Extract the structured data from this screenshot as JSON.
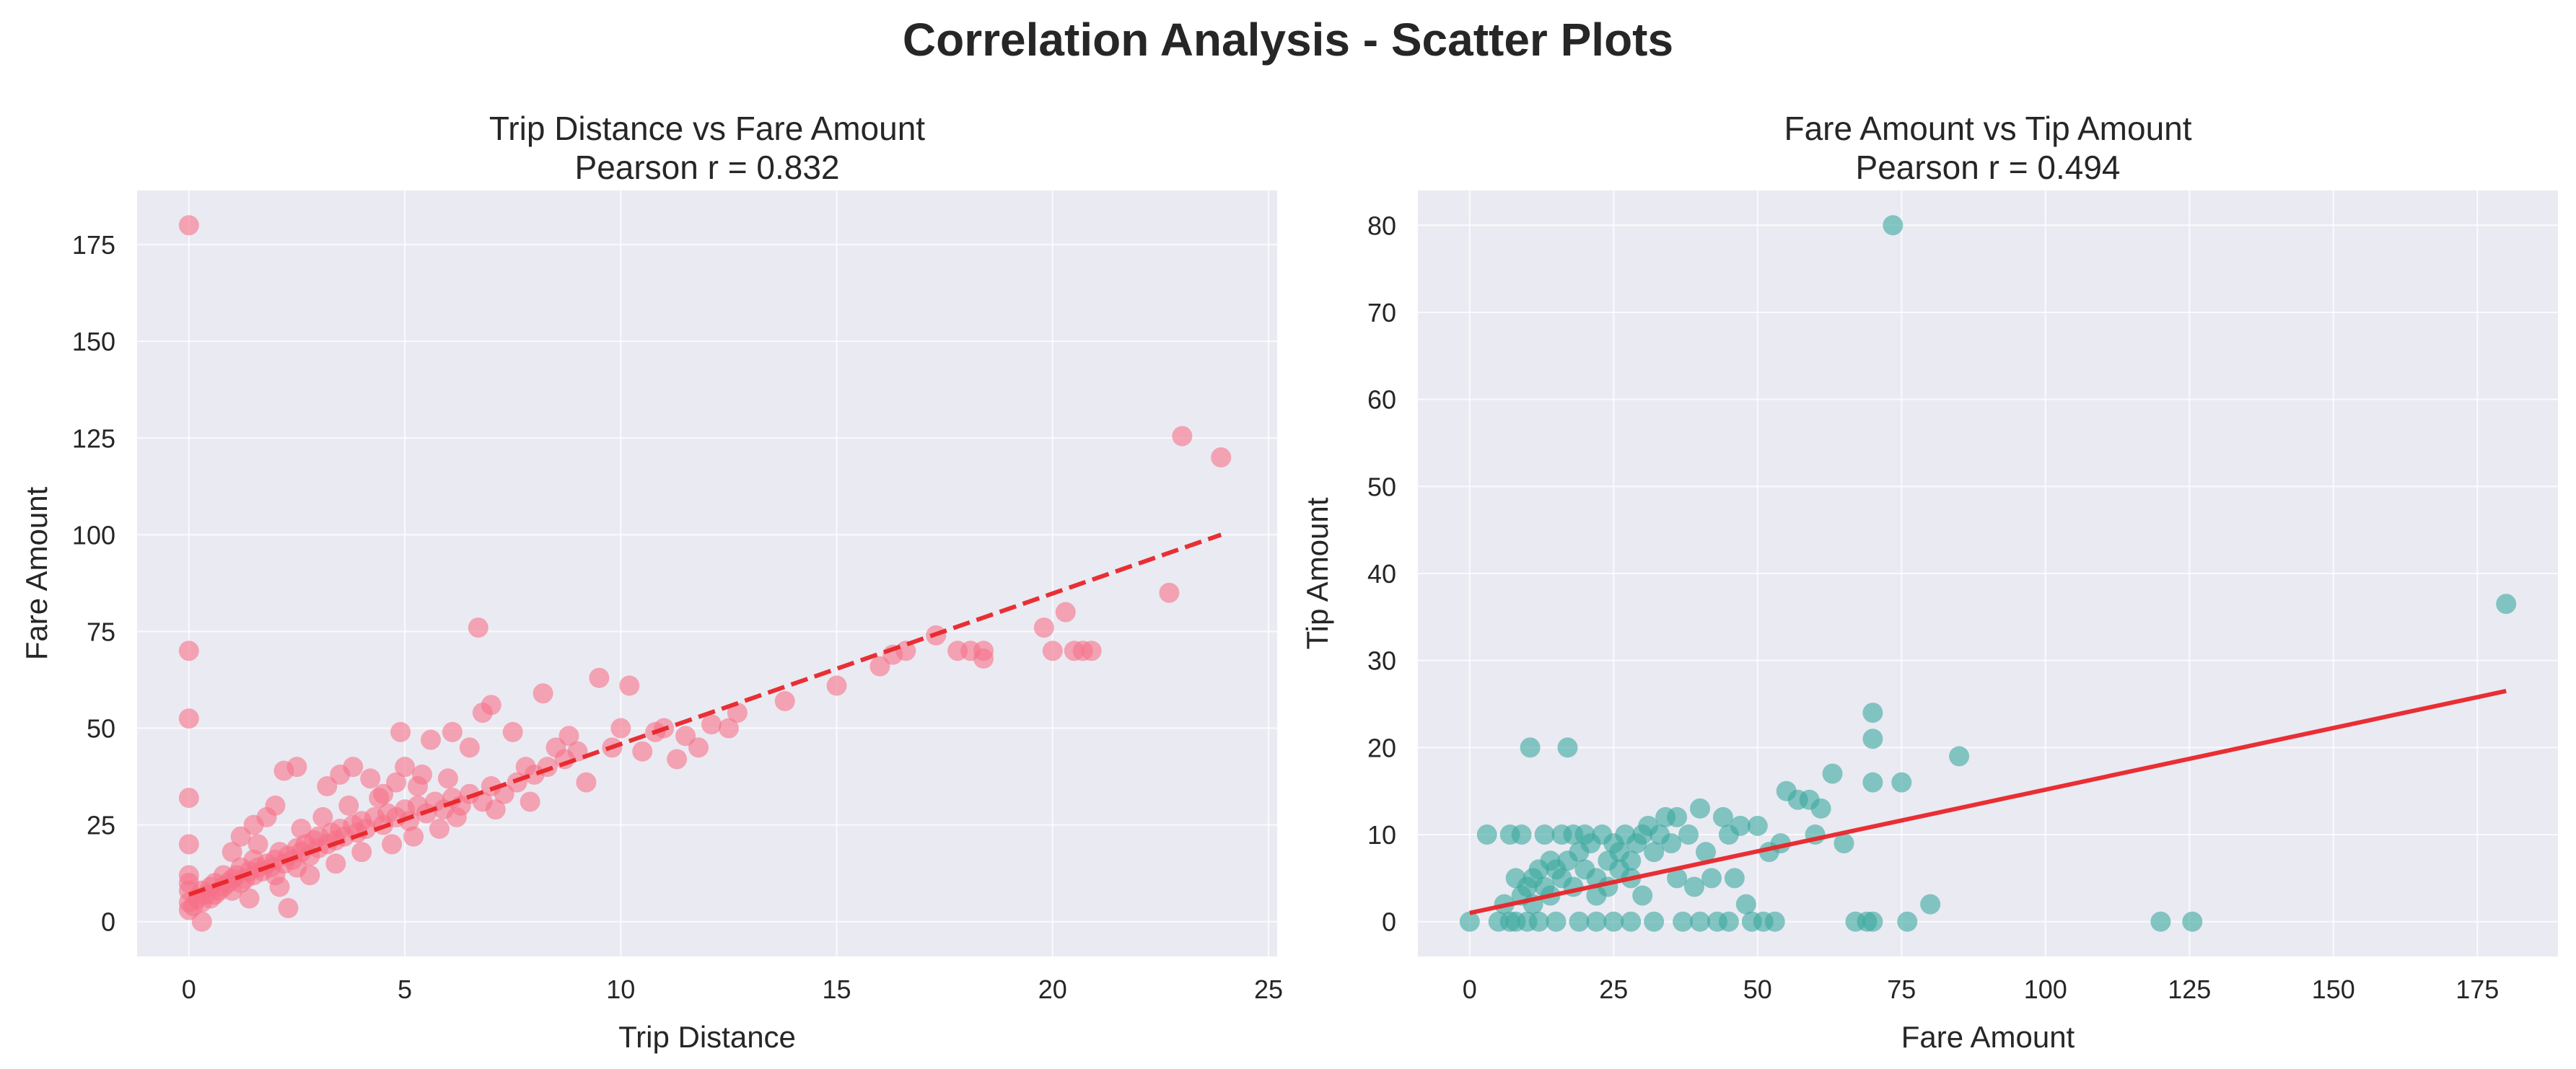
{
  "figure": {
    "title": "Correlation Analysis - Scatter Plots"
  },
  "chart_data": [
    {
      "type": "scatter",
      "title": "Trip Distance vs Fare Amount",
      "subtitle": "Pearson r = 0.832",
      "xlabel": "Trip Distance",
      "ylabel": "Fare Amount",
      "xlim": [
        -1.2,
        25.2
      ],
      "ylim": [
        -9,
        189
      ],
      "xticks": [
        0,
        5,
        10,
        15,
        20,
        25
      ],
      "yticks": [
        0,
        25,
        50,
        75,
        100,
        125,
        150,
        175
      ],
      "grid": true,
      "background": "#EAEAF2",
      "point_color": "#F77189",
      "trend_line": {
        "style": "dashed",
        "color": "#E8262A",
        "x": [
          0,
          23.9
        ],
        "y": [
          7,
          100
        ]
      },
      "series": [
        {
          "points": [
            [
              0,
              180
            ],
            [
              0,
              70
            ],
            [
              0,
              52.5
            ],
            [
              0,
              32
            ],
            [
              0,
              20
            ],
            [
              0,
              12
            ],
            [
              0,
              10
            ],
            [
              0,
              5
            ],
            [
              0,
              3
            ],
            [
              0,
              8
            ],
            [
              0.1,
              4
            ],
            [
              0.2,
              6
            ],
            [
              0.3,
              5
            ],
            [
              0.3,
              8
            ],
            [
              0.4,
              7
            ],
            [
              0.5,
              6
            ],
            [
              0.5,
              9
            ],
            [
              0.6,
              10
            ],
            [
              0.6,
              7
            ],
            [
              0.7,
              8
            ],
            [
              0.8,
              9
            ],
            [
              0.8,
              12
            ],
            [
              0.9,
              10
            ],
            [
              1.0,
              8
            ],
            [
              1.0,
              11
            ],
            [
              1.1,
              12
            ],
            [
              1.2,
              10
            ],
            [
              1.2,
              14
            ],
            [
              1.3,
              11
            ],
            [
              1.4,
              13
            ],
            [
              1.5,
              12
            ],
            [
              1.5,
              16
            ],
            [
              1.6,
              14
            ],
            [
              1.7,
              13
            ],
            [
              1.8,
              15
            ],
            [
              1.9,
              14
            ],
            [
              2.0,
              16
            ],
            [
              2.0,
              12
            ],
            [
              2.1,
              18
            ],
            [
              2.2,
              15
            ],
            [
              2.3,
              17
            ],
            [
              2.4,
              16
            ],
            [
              2.5,
              19
            ],
            [
              2.5,
              14
            ],
            [
              2.6,
              18
            ],
            [
              2.7,
              20
            ],
            [
              2.8,
              17
            ],
            [
              2.9,
              21
            ],
            [
              3.0,
              19
            ],
            [
              3.0,
              22
            ],
            [
              3.2,
              20
            ],
            [
              3.3,
              23
            ],
            [
              3.4,
              21
            ],
            [
              3.5,
              24
            ],
            [
              3.6,
              22
            ],
            [
              3.8,
              25
            ],
            [
              3.9,
              23
            ],
            [
              4.0,
              26
            ],
            [
              4.1,
              24
            ],
            [
              4.3,
              27
            ],
            [
              4.5,
              25
            ],
            [
              4.6,
              28
            ],
            [
              4.8,
              27
            ],
            [
              5.0,
              29
            ],
            [
              5.1,
              26
            ],
            [
              5.3,
              30
            ],
            [
              5.5,
              28
            ],
            [
              5.7,
              31
            ],
            [
              5.9,
              29
            ],
            [
              6.1,
              32
            ],
            [
              6.3,
              30
            ],
            [
              6.5,
              33
            ],
            [
              6.8,
              31
            ],
            [
              7.0,
              35
            ],
            [
              7.3,
              33
            ],
            [
              7.6,
              36
            ],
            [
              8.0,
              38
            ],
            [
              8.3,
              40
            ],
            [
              8.7,
              42
            ],
            [
              9.0,
              44
            ],
            [
              1.2,
              22
            ],
            [
              1.5,
              25
            ],
            [
              1.8,
              27
            ],
            [
              2.0,
              30
            ],
            [
              2.2,
              39
            ],
            [
              2.5,
              40
            ],
            [
              2.3,
              3.5
            ],
            [
              3.2,
              35
            ],
            [
              3.5,
              38
            ],
            [
              3.8,
              40
            ],
            [
              4.2,
              37
            ],
            [
              4.5,
              33
            ],
            [
              4.8,
              36
            ],
            [
              5.0,
              40
            ],
            [
              5.4,
              38
            ],
            [
              5.6,
              47
            ],
            [
              4.9,
              49
            ],
            [
              6.1,
              49
            ],
            [
              6.5,
              45
            ],
            [
              6.7,
              76
            ],
            [
              6.8,
              54
            ],
            [
              7.0,
              56
            ],
            [
              7.5,
              49
            ],
            [
              7.8,
              40
            ],
            [
              8.2,
              59
            ],
            [
              8.5,
              45
            ],
            [
              8.8,
              48
            ],
            [
              9.2,
              36
            ],
            [
              9.5,
              63
            ],
            [
              9.8,
              45
            ],
            [
              10.2,
              61
            ],
            [
              10.0,
              50
            ],
            [
              10.5,
              44
            ],
            [
              10.8,
              49
            ],
            [
              11.0,
              50
            ],
            [
              11.3,
              42
            ],
            [
              11.5,
              48
            ],
            [
              11.8,
              45
            ],
            [
              12.1,
              51
            ],
            [
              12.5,
              50
            ],
            [
              12.7,
              54
            ],
            [
              13.8,
              57
            ],
            [
              15.0,
              61
            ],
            [
              16.0,
              66
            ],
            [
              16.3,
              69
            ],
            [
              16.6,
              70
            ],
            [
              17.3,
              74
            ],
            [
              17.8,
              70
            ],
            [
              18.1,
              70
            ],
            [
              18.4,
              70
            ],
            [
              18.4,
              68
            ],
            [
              19.8,
              76
            ],
            [
              20.0,
              70
            ],
            [
              20.3,
              80
            ],
            [
              20.5,
              70
            ],
            [
              20.7,
              70
            ],
            [
              20.9,
              70
            ],
            [
              22.7,
              85
            ],
            [
              23.0,
              125.5
            ],
            [
              23.9,
              120
            ],
            [
              0.3,
              0
            ],
            [
              2.8,
              12
            ],
            [
              3.4,
              15
            ],
            [
              4.0,
              18
            ],
            [
              4.7,
              20
            ],
            [
              5.2,
              22
            ],
            [
              5.8,
              24
            ],
            [
              6.2,
              27
            ],
            [
              7.1,
              29
            ],
            [
              7.9,
              31
            ],
            [
              1.0,
              18
            ],
            [
              1.6,
              20
            ],
            [
              2.6,
              24
            ],
            [
              3.1,
              27
            ],
            [
              3.7,
              30
            ],
            [
              4.4,
              32
            ],
            [
              5.3,
              35
            ],
            [
              6.0,
              37
            ],
            [
              2.1,
              9
            ],
            [
              1.4,
              6
            ]
          ]
        }
      ]
    },
    {
      "type": "scatter",
      "title": "Fare Amount vs Tip Amount",
      "subtitle": "Pearson r = 0.494",
      "xlabel": "Fare Amount",
      "ylabel": "Tip Amount",
      "xlim": [
        -9,
        189
      ],
      "ylim": [
        -4,
        84
      ],
      "xticks": [
        0,
        25,
        50,
        75,
        100,
        125,
        150,
        175
      ],
      "yticks": [
        0,
        10,
        20,
        30,
        40,
        50,
        60,
        70,
        80
      ],
      "grid": true,
      "background": "#EAEAF2",
      "point_color": "#3BA99E",
      "trend_line": {
        "style": "solid",
        "color": "#E8262A",
        "x": [
          0,
          180
        ],
        "y": [
          1,
          26.5
        ]
      },
      "series": [
        {
          "points": [
            [
              0,
              0
            ],
            [
              3,
              10
            ],
            [
              5,
              0
            ],
            [
              6,
              2
            ],
            [
              7,
              0
            ],
            [
              7,
              10
            ],
            [
              8,
              5
            ],
            [
              8,
              0
            ],
            [
              9,
              3
            ],
            [
              9,
              10
            ],
            [
              10,
              4
            ],
            [
              10,
              0
            ],
            [
              10.5,
              20
            ],
            [
              11,
              5
            ],
            [
              11,
              2
            ],
            [
              12,
              6
            ],
            [
              12,
              0
            ],
            [
              13,
              4
            ],
            [
              13,
              10
            ],
            [
              14,
              7
            ],
            [
              14,
              3
            ],
            [
              15,
              0
            ],
            [
              15,
              6
            ],
            [
              16,
              5
            ],
            [
              16,
              10
            ],
            [
              17,
              20
            ],
            [
              17,
              7
            ],
            [
              18,
              4
            ],
            [
              18,
              10
            ],
            [
              19,
              8
            ],
            [
              19,
              0
            ],
            [
              20,
              6
            ],
            [
              20,
              10
            ],
            [
              21,
              9
            ],
            [
              22,
              5
            ],
            [
              22,
              0
            ],
            [
              23,
              10
            ],
            [
              24,
              7
            ],
            [
              25,
              9
            ],
            [
              25,
              0
            ],
            [
              26,
              8
            ],
            [
              27,
              10
            ],
            [
              28,
              5
            ],
            [
              28,
              0
            ],
            [
              29,
              9
            ],
            [
              30,
              10
            ],
            [
              30,
              3
            ],
            [
              31,
              11
            ],
            [
              32,
              8
            ],
            [
              32,
              0
            ],
            [
              33,
              10
            ],
            [
              34,
              12
            ],
            [
              35,
              9
            ],
            [
              36,
              12
            ],
            [
              36,
              5
            ],
            [
              37,
              0
            ],
            [
              38,
              10
            ],
            [
              39,
              4
            ],
            [
              40,
              13
            ],
            [
              40,
              0
            ],
            [
              41,
              8
            ],
            [
              42,
              5
            ],
            [
              43,
              0
            ],
            [
              44,
              12
            ],
            [
              45,
              10
            ],
            [
              45,
              0
            ],
            [
              46,
              5
            ],
            [
              47,
              11
            ],
            [
              48,
              2
            ],
            [
              49,
              0
            ],
            [
              50,
              11
            ],
            [
              51,
              0
            ],
            [
              52,
              8
            ],
            [
              53,
              0
            ],
            [
              54,
              9
            ],
            [
              55,
              15
            ],
            [
              57,
              14
            ],
            [
              59,
              14
            ],
            [
              60,
              10
            ],
            [
              61,
              13
            ],
            [
              63,
              17
            ],
            [
              65,
              9
            ],
            [
              67,
              0
            ],
            [
              69,
              0
            ],
            [
              70,
              24
            ],
            [
              70,
              21
            ],
            [
              70,
              16
            ],
            [
              70,
              0
            ],
            [
              73.5,
              80
            ],
            [
              75,
              16
            ],
            [
              76,
              0
            ],
            [
              80,
              2
            ],
            [
              85,
              19
            ],
            [
              120,
              0
            ],
            [
              125.5,
              0
            ],
            [
              180,
              36.5
            ],
            [
              22,
              3
            ],
            [
              24,
              4
            ],
            [
              26,
              6
            ],
            [
              28,
              7
            ]
          ]
        }
      ]
    }
  ]
}
